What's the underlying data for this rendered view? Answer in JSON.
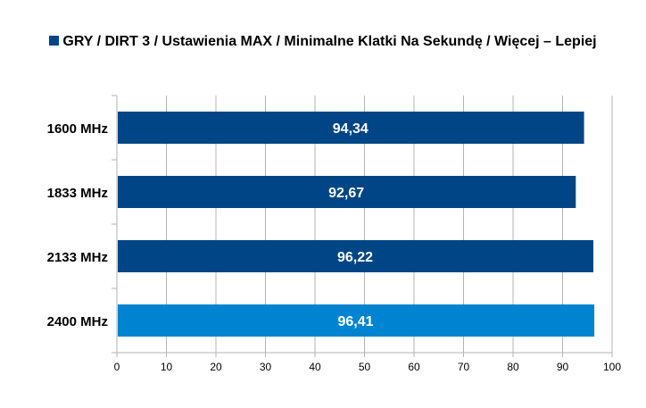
{
  "chart_data": {
    "type": "bar",
    "orientation": "horizontal",
    "title": "",
    "legend": {
      "position": "top",
      "entries": [
        "GRY / DIRT 3 / Ustawienia MAX / Minimalne Klatki Na Sekundę / Więcej – Lepiej"
      ]
    },
    "categories": [
      "1600 MHz",
      "1833 MHz",
      "2133 MHz",
      "2400 MHz"
    ],
    "series": [
      {
        "name": "GRY / DIRT 3 / Ustawienia MAX / Minimalne Klatki Na Sekundę / Więcej – Lepiej",
        "values": [
          94.34,
          92.67,
          96.22,
          96.41
        ],
        "value_labels": [
          "94,34",
          "92,67",
          "96,22",
          "96,41"
        ],
        "color": "#004586"
      }
    ],
    "highlight": {
      "category": "2400 MHz",
      "color": "#0084d1"
    },
    "xlim": [
      0,
      100
    ],
    "xticks": [
      0,
      10,
      20,
      30,
      40,
      50,
      60,
      70,
      80,
      90,
      100
    ],
    "grid": {
      "vertical": true,
      "color": "#b3b3b3"
    },
    "xlabel": "",
    "ylabel": ""
  }
}
